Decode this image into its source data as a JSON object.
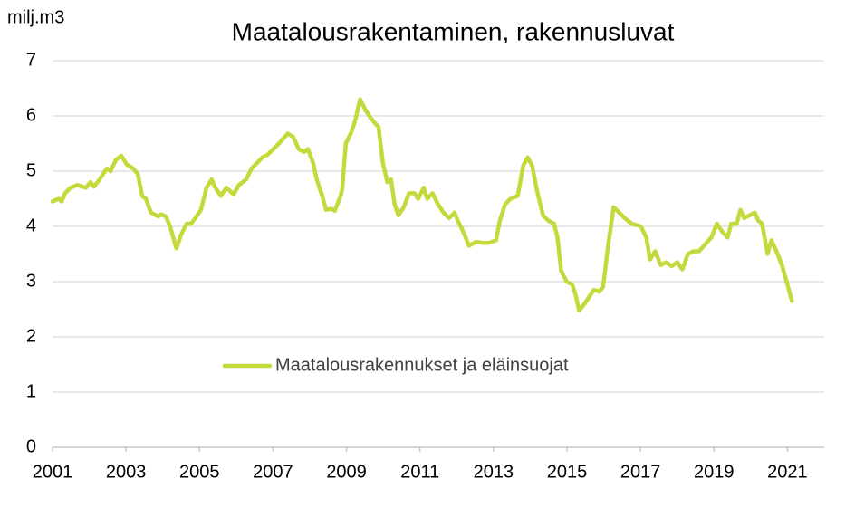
{
  "chart_data": {
    "type": "line",
    "title": "Maatalousrakentaminen, rakennusluvat",
    "y_label": "milj.m3",
    "xlim": [
      2001,
      2022
    ],
    "xticks": [
      2001,
      2003,
      2005,
      2007,
      2009,
      2011,
      2013,
      2015,
      2017,
      2019,
      2021
    ],
    "ylim": [
      0,
      7
    ],
    "yticks": [
      0,
      1,
      2,
      3,
      4,
      5,
      6,
      7
    ],
    "grid": true,
    "legend": "center",
    "x": [
      2001.0,
      2001.17,
      2001.25,
      2001.34,
      2001.49,
      2001.67,
      2001.91,
      2002.03,
      2002.13,
      2002.28,
      2002.48,
      2002.58,
      2002.72,
      2002.87,
      2003.02,
      2003.19,
      2003.32,
      2003.44,
      2003.54,
      2003.68,
      2003.88,
      2003.96,
      2004.08,
      2004.2,
      2004.37,
      2004.5,
      2004.65,
      2004.77,
      2004.89,
      2005.04,
      2005.19,
      2005.33,
      2005.43,
      2005.58,
      2005.73,
      2005.93,
      2006.07,
      2006.27,
      2006.42,
      2006.57,
      2006.71,
      2006.86,
      2007.01,
      2007.16,
      2007.4,
      2007.55,
      2007.7,
      2007.85,
      2007.95,
      2008.09,
      2008.19,
      2008.34,
      2008.44,
      2008.59,
      2008.68,
      2008.81,
      2008.88,
      2008.98,
      2009.13,
      2009.23,
      2009.37,
      2009.52,
      2009.67,
      2009.87,
      2009.99,
      2010.11,
      2010.21,
      2010.31,
      2010.41,
      2010.56,
      2010.7,
      2010.85,
      2010.95,
      2011.1,
      2011.2,
      2011.34,
      2011.49,
      2011.64,
      2011.79,
      2011.94,
      2012.03,
      2012.18,
      2012.33,
      2012.53,
      2012.72,
      2012.87,
      2013.07,
      2013.17,
      2013.32,
      2013.46,
      2013.66,
      2013.81,
      2013.93,
      2014.05,
      2014.2,
      2014.35,
      2014.5,
      2014.65,
      2014.74,
      2014.84,
      2014.99,
      2015.14,
      2015.24,
      2015.33,
      2015.48,
      2015.63,
      2015.73,
      2015.88,
      2015.98,
      2016.12,
      2016.27,
      2016.42,
      2016.57,
      2016.76,
      2017.01,
      2017.16,
      2017.26,
      2017.4,
      2017.55,
      2017.7,
      2017.85,
      2018.0,
      2018.14,
      2018.29,
      2018.44,
      2018.59,
      2018.73,
      2018.93,
      2019.08,
      2019.23,
      2019.37,
      2019.47,
      2019.62,
      2019.72,
      2019.82,
      2019.97,
      2020.11,
      2020.21,
      2020.31,
      2020.46,
      2020.56,
      2020.7,
      2020.85,
      2021.0,
      2021.12
    ],
    "series": [
      {
        "name": "Maatalousrakennukset ja eläinsuojat",
        "color": "#c5d93c",
        "values": [
          4.45,
          4.5,
          4.45,
          4.6,
          4.7,
          4.75,
          4.7,
          4.8,
          4.72,
          4.85,
          5.05,
          5.0,
          5.2,
          5.28,
          5.12,
          5.05,
          4.95,
          4.55,
          4.5,
          4.25,
          4.18,
          4.22,
          4.18,
          4.0,
          3.6,
          3.85,
          4.05,
          4.05,
          4.15,
          4.3,
          4.7,
          4.85,
          4.7,
          4.55,
          4.7,
          4.58,
          4.75,
          4.85,
          5.05,
          5.15,
          5.25,
          5.3,
          5.4,
          5.5,
          5.68,
          5.62,
          5.4,
          5.35,
          5.4,
          5.15,
          4.85,
          4.55,
          4.3,
          4.32,
          4.28,
          4.5,
          4.65,
          5.5,
          5.7,
          5.9,
          6.3,
          6.1,
          5.95,
          5.8,
          5.15,
          4.8,
          4.85,
          4.4,
          4.2,
          4.35,
          4.6,
          4.6,
          4.5,
          4.7,
          4.5,
          4.6,
          4.4,
          4.25,
          4.15,
          4.25,
          4.1,
          3.9,
          3.65,
          3.72,
          3.7,
          3.7,
          3.75,
          4.1,
          4.4,
          4.5,
          4.55,
          5.1,
          5.25,
          5.1,
          4.6,
          4.2,
          4.1,
          4.05,
          3.8,
          3.2,
          3.0,
          2.95,
          2.75,
          2.48,
          2.6,
          2.75,
          2.85,
          2.82,
          2.9,
          3.65,
          4.35,
          4.25,
          4.15,
          4.05,
          4.0,
          3.8,
          3.4,
          3.55,
          3.3,
          3.35,
          3.28,
          3.35,
          3.22,
          3.5,
          3.55,
          3.55,
          3.65,
          3.8,
          4.05,
          3.9,
          3.8,
          4.05,
          4.05,
          4.3,
          4.15,
          4.2,
          4.25,
          4.1,
          4.05,
          3.5,
          3.75,
          3.55,
          3.3,
          2.95,
          2.65
        ]
      }
    ]
  }
}
